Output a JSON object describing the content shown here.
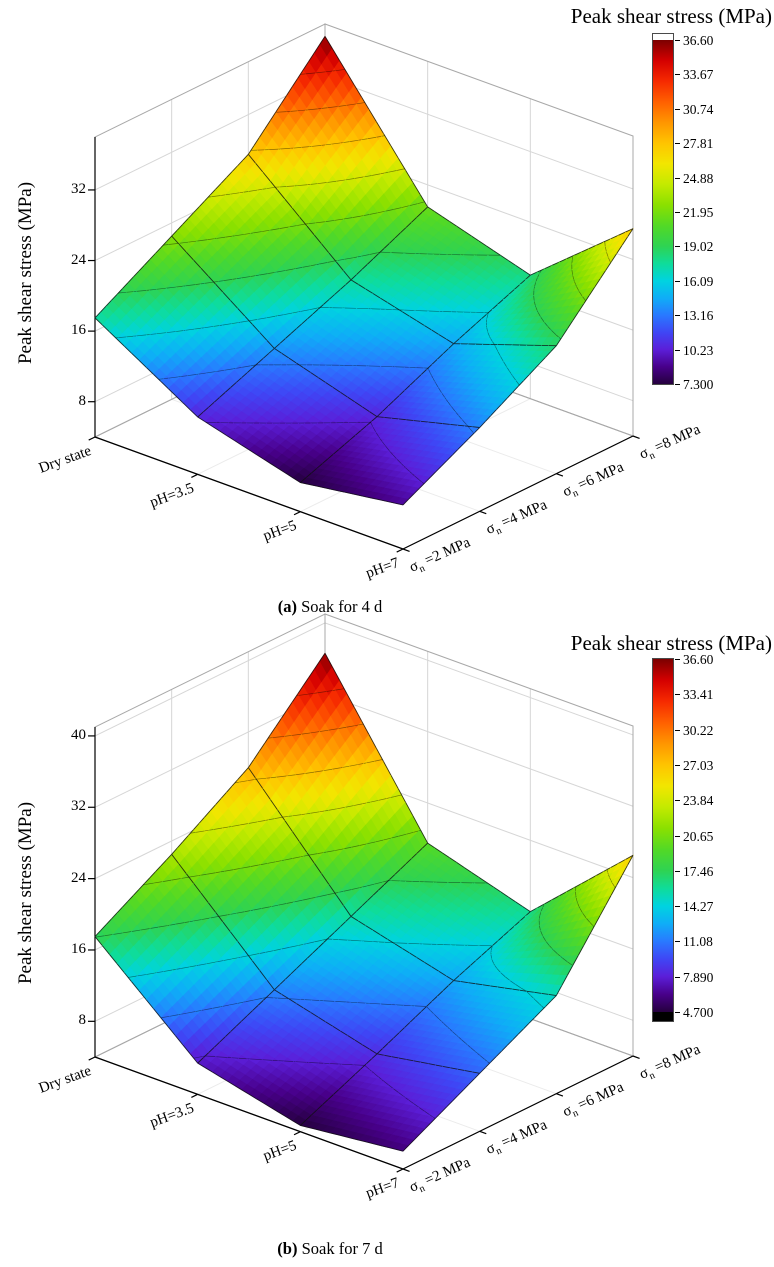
{
  "page_background": "#ffffff",
  "colormap": [
    [
      0.0,
      "#25003e"
    ],
    [
      0.05,
      "#48008a"
    ],
    [
      0.1,
      "#5b1ed8"
    ],
    [
      0.15,
      "#3f46f5"
    ],
    [
      0.2,
      "#2979ff"
    ],
    [
      0.25,
      "#0fadf7"
    ],
    [
      0.3,
      "#00d3e0"
    ],
    [
      0.35,
      "#0fdc9a"
    ],
    [
      0.4,
      "#2ed353"
    ],
    [
      0.46,
      "#52d926"
    ],
    [
      0.52,
      "#8ae000"
    ],
    [
      0.58,
      "#c3ea00"
    ],
    [
      0.64,
      "#f2e600"
    ],
    [
      0.7,
      "#ffc400"
    ],
    [
      0.76,
      "#ff9600"
    ],
    [
      0.82,
      "#ff6000"
    ],
    [
      0.88,
      "#f62a00"
    ],
    [
      0.94,
      "#d40000"
    ],
    [
      1.0,
      "#7c0000"
    ]
  ],
  "figures": [
    {
      "caption_marker": "(a)",
      "caption_text": "Soak for 4 d"
    },
    {
      "caption_marker": "(b)",
      "caption_text": "Soak for 7 d"
    }
  ],
  "chart_data": [
    {
      "type": "surface",
      "title": "Soak for 4 d",
      "x_categories": [
        "Dry state",
        "pH=3.5",
        "pH=5",
        "pH=7"
      ],
      "y_categories": [
        "σn =2 MPa",
        "σn =4 MPa",
        "σn =6 MPa",
        "σn =8 MPa"
      ],
      "z_label": "Peak shear stress (MPa)",
      "z_ticks": [
        8,
        16,
        24,
        32
      ],
      "z_range": [
        4,
        38
      ],
      "colorbar_title": "Peak shear stress (MPa)",
      "colorbar_ticks": [
        "36.60",
        "33.67",
        "30.74",
        "27.81",
        "24.88",
        "21.95",
        "19.02",
        "16.09",
        "13.16",
        "10.23",
        "7.300"
      ],
      "color_range": [
        7.3,
        36.6
      ],
      "values": [
        [
          17.5,
          22.5,
          27.5,
          36.6
        ],
        [
          10.5,
          14.0,
          17.5,
          21.5
        ],
        [
          7.3,
          10.5,
          14.5,
          18.0
        ],
        [
          9.0,
          13.5,
          18.5,
          27.5
        ]
      ]
    },
    {
      "type": "surface",
      "title": "Soak for 7 d",
      "x_categories": [
        "Dry state",
        "pH=3.5",
        "pH=5",
        "pH=7"
      ],
      "y_categories": [
        "σn =2 MPa",
        "σn =4 MPa",
        "σn =6 MPa",
        "σn =8 MPa"
      ],
      "z_label": "Peak shear stress (MPa)",
      "z_ticks": [
        8,
        16,
        24,
        32,
        40
      ],
      "z_range": [
        4,
        41
      ],
      "colorbar_title": "Peak shear stress (MPa)",
      "colorbar_ticks": [
        "36.60",
        "33.41",
        "30.22",
        "27.03",
        "23.84",
        "20.65",
        "17.46",
        "14.27",
        "11.08",
        "7.890",
        "4.700"
      ],
      "color_range": [
        4.7,
        36.6
      ],
      "values": [
        [
          17.5,
          22.5,
          28.0,
          36.6
        ],
        [
          7.5,
          11.5,
          15.5,
          19.5
        ],
        [
          4.7,
          8.5,
          12.5,
          16.0
        ],
        [
          6.0,
          10.5,
          15.0,
          26.5
        ]
      ]
    }
  ]
}
